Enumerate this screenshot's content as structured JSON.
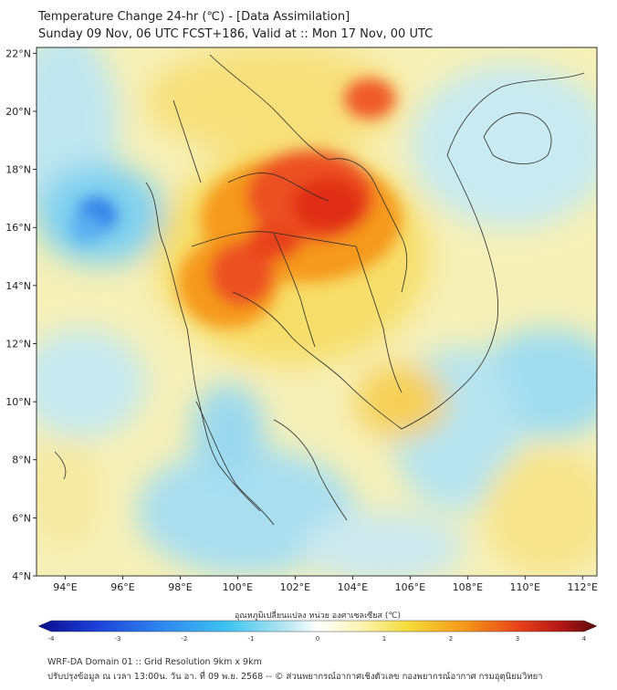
{
  "title": {
    "line1": "Temperature Change 24-hr (℃) - [Data Assimilation]",
    "line2": "Sunday 09 Nov, 06 UTC FCST+186, Valid at :: Mon 17 Nov, 00 UTC"
  },
  "map": {
    "lon_range": [
      93,
      112.5
    ],
    "lat_range": [
      4,
      22.2
    ],
    "lon_ticks": [
      "94°E",
      "96°E",
      "98°E",
      "100°E",
      "102°E",
      "104°E",
      "106°E",
      "108°E",
      "110°E",
      "112°E"
    ],
    "lat_ticks": [
      "22°N",
      "20°N",
      "18°N",
      "16°N",
      "14°N",
      "12°N",
      "10°N",
      "8°N",
      "6°N",
      "4°N"
    ],
    "hotspot_peak_c": 3.2,
    "coldspot_min_c": -2.6
  },
  "colorbar": {
    "label": "อุณหภูมิเปลี่ยนแปลง หน่วย องศาเซลเซียส (℃)",
    "range": [
      -4,
      4
    ],
    "ticks": [
      "-4",
      "-3",
      "-2",
      "-1",
      "0",
      "1",
      "2",
      "3",
      "4"
    ],
    "colors": [
      "#0a0a8a",
      "#1a3fd8",
      "#2f86ee",
      "#3fc4f2",
      "#bfe9f2",
      "#ffffff",
      "#fbf3b0",
      "#f5dc3a",
      "#f59a1a",
      "#e8421a",
      "#b01414",
      "#5a0a0a"
    ]
  },
  "footer": {
    "line1": "WRF-DA Domain 01 :: Grid Resolution 9km x 9km",
    "line2": "ปรับปรุงข้อมูล ณ เวลา 13:00น. วัน อา. ที่ 09 พ.ย. 2568 -- © ส่วนพยากรณ์อากาศเชิงตัวเลข กองพยากรณ์อากาศ กรมอุตุนิยมวิทยา"
  }
}
